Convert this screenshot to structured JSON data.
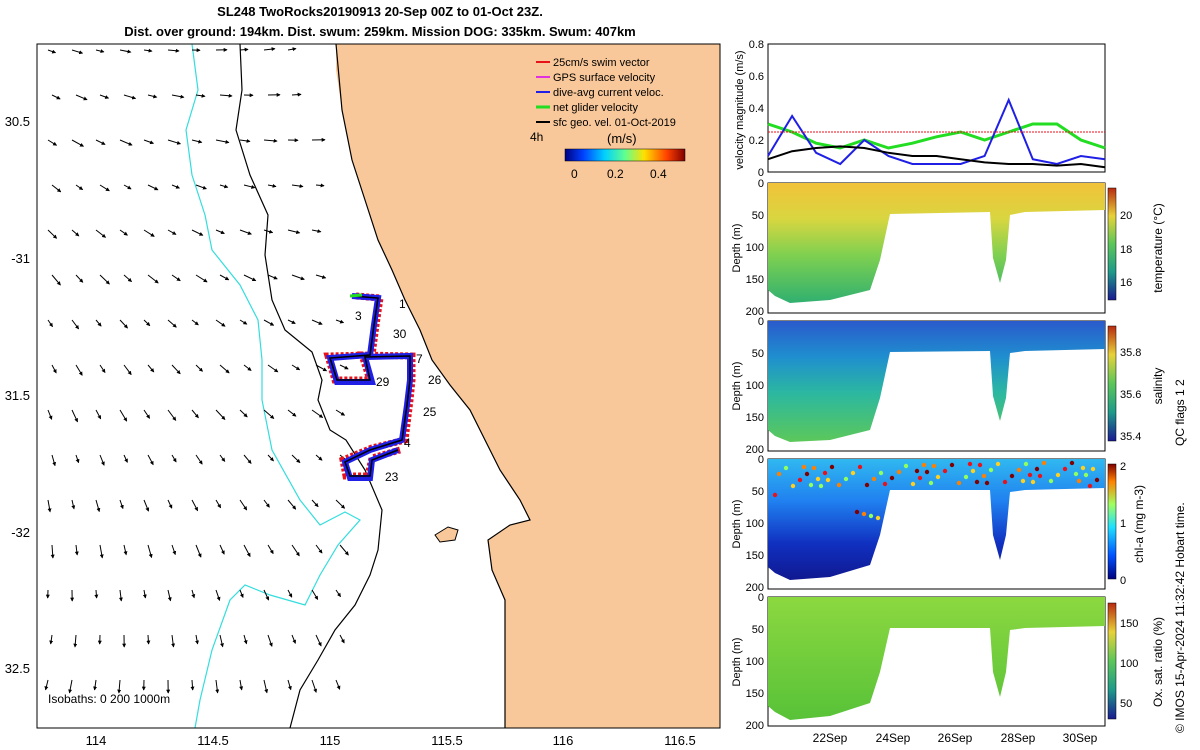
{
  "header": {
    "line1": "SL248 TwoRocks20190913 20-Sep 00Z to 01-Oct 23Z.",
    "line2": "Dist. over ground: 194km. Dist. swum: 259km. Mission DOG: 335km. Swum: 407km"
  },
  "map": {
    "lon_ticks": [
      "114",
      "114.5",
      "115",
      "115.5",
      "116",
      "116.5"
    ],
    "lat_ticks": [
      "30.5",
      "-31",
      "31.5",
      "-32",
      "32.5"
    ],
    "legend": [
      "25cm/s swim vector",
      "GPS surface velocity",
      "dive-avg current veloc.",
      "net glider velocity",
      "sfc geo. vel. 01-Oct-2019"
    ],
    "colorbar": {
      "label": "(m/s)",
      "ticks": [
        "0",
        "0.2",
        "0.4"
      ],
      "prefix": "4h"
    },
    "isobaths": "Isobaths: 0   200  1000m",
    "track_labels": [
      "1",
      "3",
      "30",
      "7",
      "26",
      "29",
      "25",
      "4",
      "23"
    ]
  },
  "panels": {
    "velocity": {
      "ylabel": "velocity magnitude (m/s)",
      "yticks": [
        "0",
        "0.2",
        "0.4",
        "0.6",
        "0.8"
      ]
    },
    "depth_ticks": [
      "0",
      "50",
      "100",
      "150",
      "200"
    ],
    "depth_label": "Depth (m)",
    "temperature": {
      "label": "temperature (°C)",
      "ticks": [
        "16",
        "18",
        "20"
      ]
    },
    "salinity": {
      "label": "salinity",
      "ticks": [
        "35.4",
        "35.6",
        "35.8"
      ]
    },
    "chla": {
      "label": "chl-a (mg m-3)",
      "ticks": [
        "0",
        "1",
        "2"
      ]
    },
    "oxygen": {
      "label": "Ox. sat. ratio (%)",
      "ticks": [
        "50",
        "100",
        "150"
      ]
    },
    "date_ticks": [
      "22Sep",
      "24Sep",
      "26Sep",
      "28Sep",
      "30Sep"
    ]
  },
  "footer": {
    "qc": "QC flags 1  2",
    "credit": "© IMOS 15-Apr-2024 11:32:42 Hobart time."
  },
  "chart_data": {
    "type": "line",
    "title": "velocity magnitude (m/s)",
    "ylim": [
      0,
      0.8
    ],
    "series": [
      {
        "name": "net glider velocity",
        "values": [
          0.3,
          0.25,
          0.18,
          0.15,
          0.2,
          0.15,
          0.18,
          0.22,
          0.25,
          0.2,
          0.25,
          0.3,
          0.3,
          0.2,
          0.15
        ]
      },
      {
        "name": "dive-avg current veloc.",
        "values": [
          0.1,
          0.35,
          0.12,
          0.05,
          0.2,
          0.1,
          0.05,
          0.05,
          0.05,
          0.1,
          0.45,
          0.08,
          0.05,
          0.1,
          0.08
        ]
      },
      {
        "name": "sfc geo. vel.",
        "values": [
          0.08,
          0.13,
          0.15,
          0.16,
          0.15,
          0.12,
          0.1,
          0.1,
          0.08,
          0.06,
          0.05,
          0.05,
          0.04,
          0.05,
          0.03
        ]
      },
      {
        "name": "25cm/s reference",
        "values": [
          0.25,
          0.25,
          0.25,
          0.25,
          0.25,
          0.25,
          0.25,
          0.25,
          0.25,
          0.25,
          0.25,
          0.25,
          0.25,
          0.25,
          0.25
        ]
      }
    ]
  },
  "colors": {
    "land": "#f9c89a",
    "isobath_200": "#000000",
    "isobath_1000": "#33dddd",
    "swim": "#e8121b",
    "dive": "#1f1fe6",
    "net": "#22dd22",
    "sfc": "#000000"
  }
}
